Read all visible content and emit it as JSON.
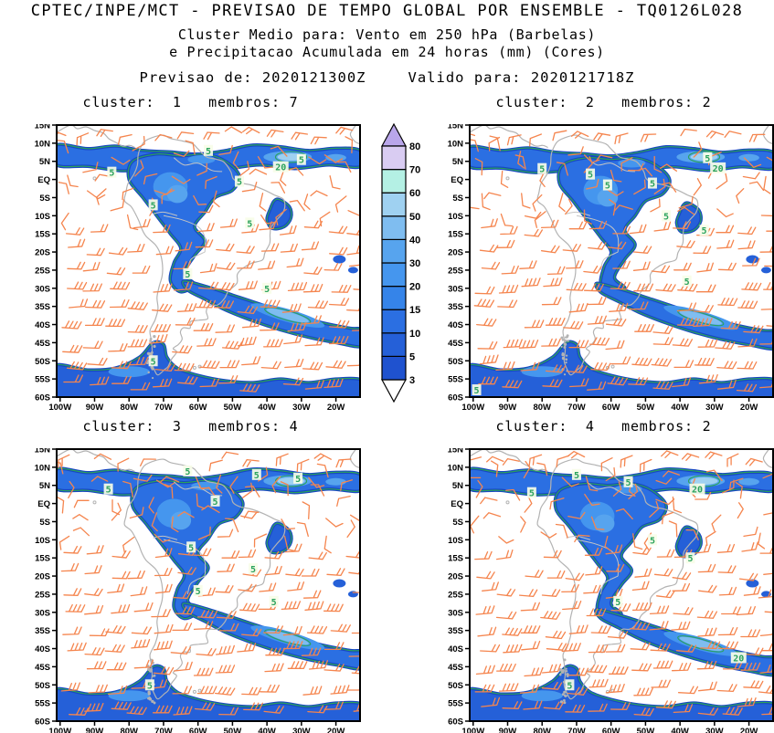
{
  "header": {
    "title": "CPTEC/INPE/MCT - PREVISAO DE TEMPO GLOBAL POR ENSEMBLE - TQ0126L028",
    "subtitle1": "Cluster Medio para: Vento em 250 hPa (Barbelas)",
    "subtitle2": "e Precipitacao Acumulada em 24 horas (mm) (Cores)",
    "init_label": "Previsao de:",
    "init_value": "2020121300Z",
    "valid_label": "Valido para:",
    "valid_value": "2020121718Z"
  },
  "panels": [
    {
      "cluster": "1",
      "membros": "7",
      "title": "cluster:  1   membros: 7"
    },
    {
      "cluster": "2",
      "membros": "2",
      "title": "cluster:  2   membros: 2"
    },
    {
      "cluster": "3",
      "membros": "4",
      "title": "cluster:  3   membros: 4"
    },
    {
      "cluster": "4",
      "membros": "2",
      "title": "cluster:  4   membros: 2"
    }
  ],
  "chart_data": {
    "type": "map",
    "description": "Ensemble cluster mean maps over South America: wind barbs at 250 hPa and 24-h accumulated precipitation (shaded)",
    "variables": [
      "Vento em 250 hPa (Barbelas)",
      "Precipitacao Acumulada em 24 horas (mm) (Cores)"
    ],
    "forecast_init": "2020121300Z",
    "forecast_valid": "2020121718Z",
    "panels": [
      {
        "cluster": 1,
        "membros": 7
      },
      {
        "cluster": 2,
        "membros": 2
      },
      {
        "cluster": 3,
        "membros": 4
      },
      {
        "cluster": 4,
        "membros": 2
      }
    ],
    "map_region": {
      "lon_min": -101,
      "lon_max": -13,
      "lat_min": -60,
      "lat_max": 15
    },
    "lat_ticks": [
      "15N",
      "10N",
      "5N",
      "EQ",
      "5S",
      "10S",
      "15S",
      "20S",
      "25S",
      "30S",
      "35S",
      "40S",
      "45S",
      "50S",
      "55S",
      "60S"
    ],
    "lon_ticks": [
      "100W",
      "90W",
      "80W",
      "70W",
      "60W",
      "50W",
      "40W",
      "30W",
      "20W"
    ],
    "colorbar": {
      "units": "mm",
      "levels": [
        3,
        5,
        10,
        15,
        20,
        30,
        40,
        50,
        60,
        70,
        80
      ],
      "colors": [
        "#1f52cf",
        "#2560d8",
        "#2b6fe2",
        "#3584e9",
        "#4596ee",
        "#57a4ee",
        "#7fbdf0",
        "#9fd1f1",
        "#b4f0e4",
        "#d9ccf2"
      ],
      "over_color": "#b9a6ea",
      "under_color": "#ffffff"
    },
    "contour_label_values": [
      "5",
      "20"
    ],
    "style": {
      "wind_barb_color": "#f5854e",
      "coast_color": "#b3b3b3",
      "contour_color": "#2aa25c",
      "contour_label_bg": "#f7fde8",
      "precip_base_color": "#2b6fe2",
      "precip_edge_color": "#1846c4"
    }
  }
}
